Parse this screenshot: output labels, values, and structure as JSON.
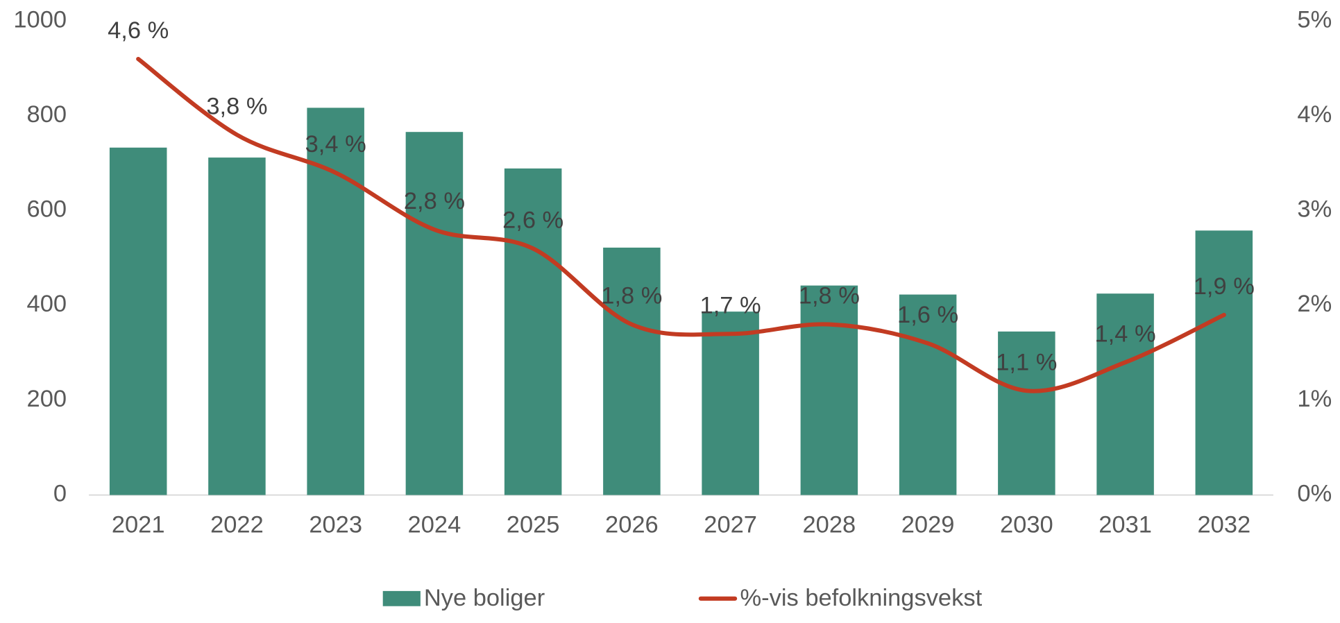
{
  "chart_data": {
    "type": "bar",
    "categories": [
      "2021",
      "2022",
      "2023",
      "2024",
      "2025",
      "2026",
      "2027",
      "2028",
      "2029",
      "2030",
      "2031",
      "2032"
    ],
    "series": [
      {
        "name": "Nye boliger",
        "type": "bar",
        "color": "#3f8c7a",
        "values": [
          733,
          712,
          817,
          766,
          689,
          522,
          387,
          442,
          423,
          345,
          425,
          558
        ]
      },
      {
        "name": "%-vis befolkningsvekst",
        "type": "line",
        "axis": "y2",
        "color": "#c23b22",
        "smooth": true,
        "values": [
          4.6,
          3.8,
          3.4,
          2.8,
          2.6,
          1.8,
          1.7,
          1.8,
          1.6,
          1.1,
          1.4,
          1.9
        ],
        "value_labels": [
          "4,6 %",
          "3,8 %",
          "3,4 %",
          "2,8 %",
          "2,6 %",
          "1,8 %",
          "1,7 %",
          "1,8 %",
          "1,6 %",
          "1,1 %",
          "1,4 %",
          "1,9 %"
        ]
      }
    ],
    "ylim": [
      0,
      1000
    ],
    "yticks": [
      0,
      200,
      400,
      600,
      800,
      1000
    ],
    "y2lim": [
      0,
      5
    ],
    "y2ticks": [
      {
        "value": 0,
        "label": "0%"
      },
      {
        "value": 1,
        "label": "1%"
      },
      {
        "value": 2,
        "label": "2%"
      },
      {
        "value": 3,
        "label": "3%"
      },
      {
        "value": 4,
        "label": "4%"
      },
      {
        "value": 5,
        "label": "5%"
      }
    ],
    "legend": "bottom"
  }
}
